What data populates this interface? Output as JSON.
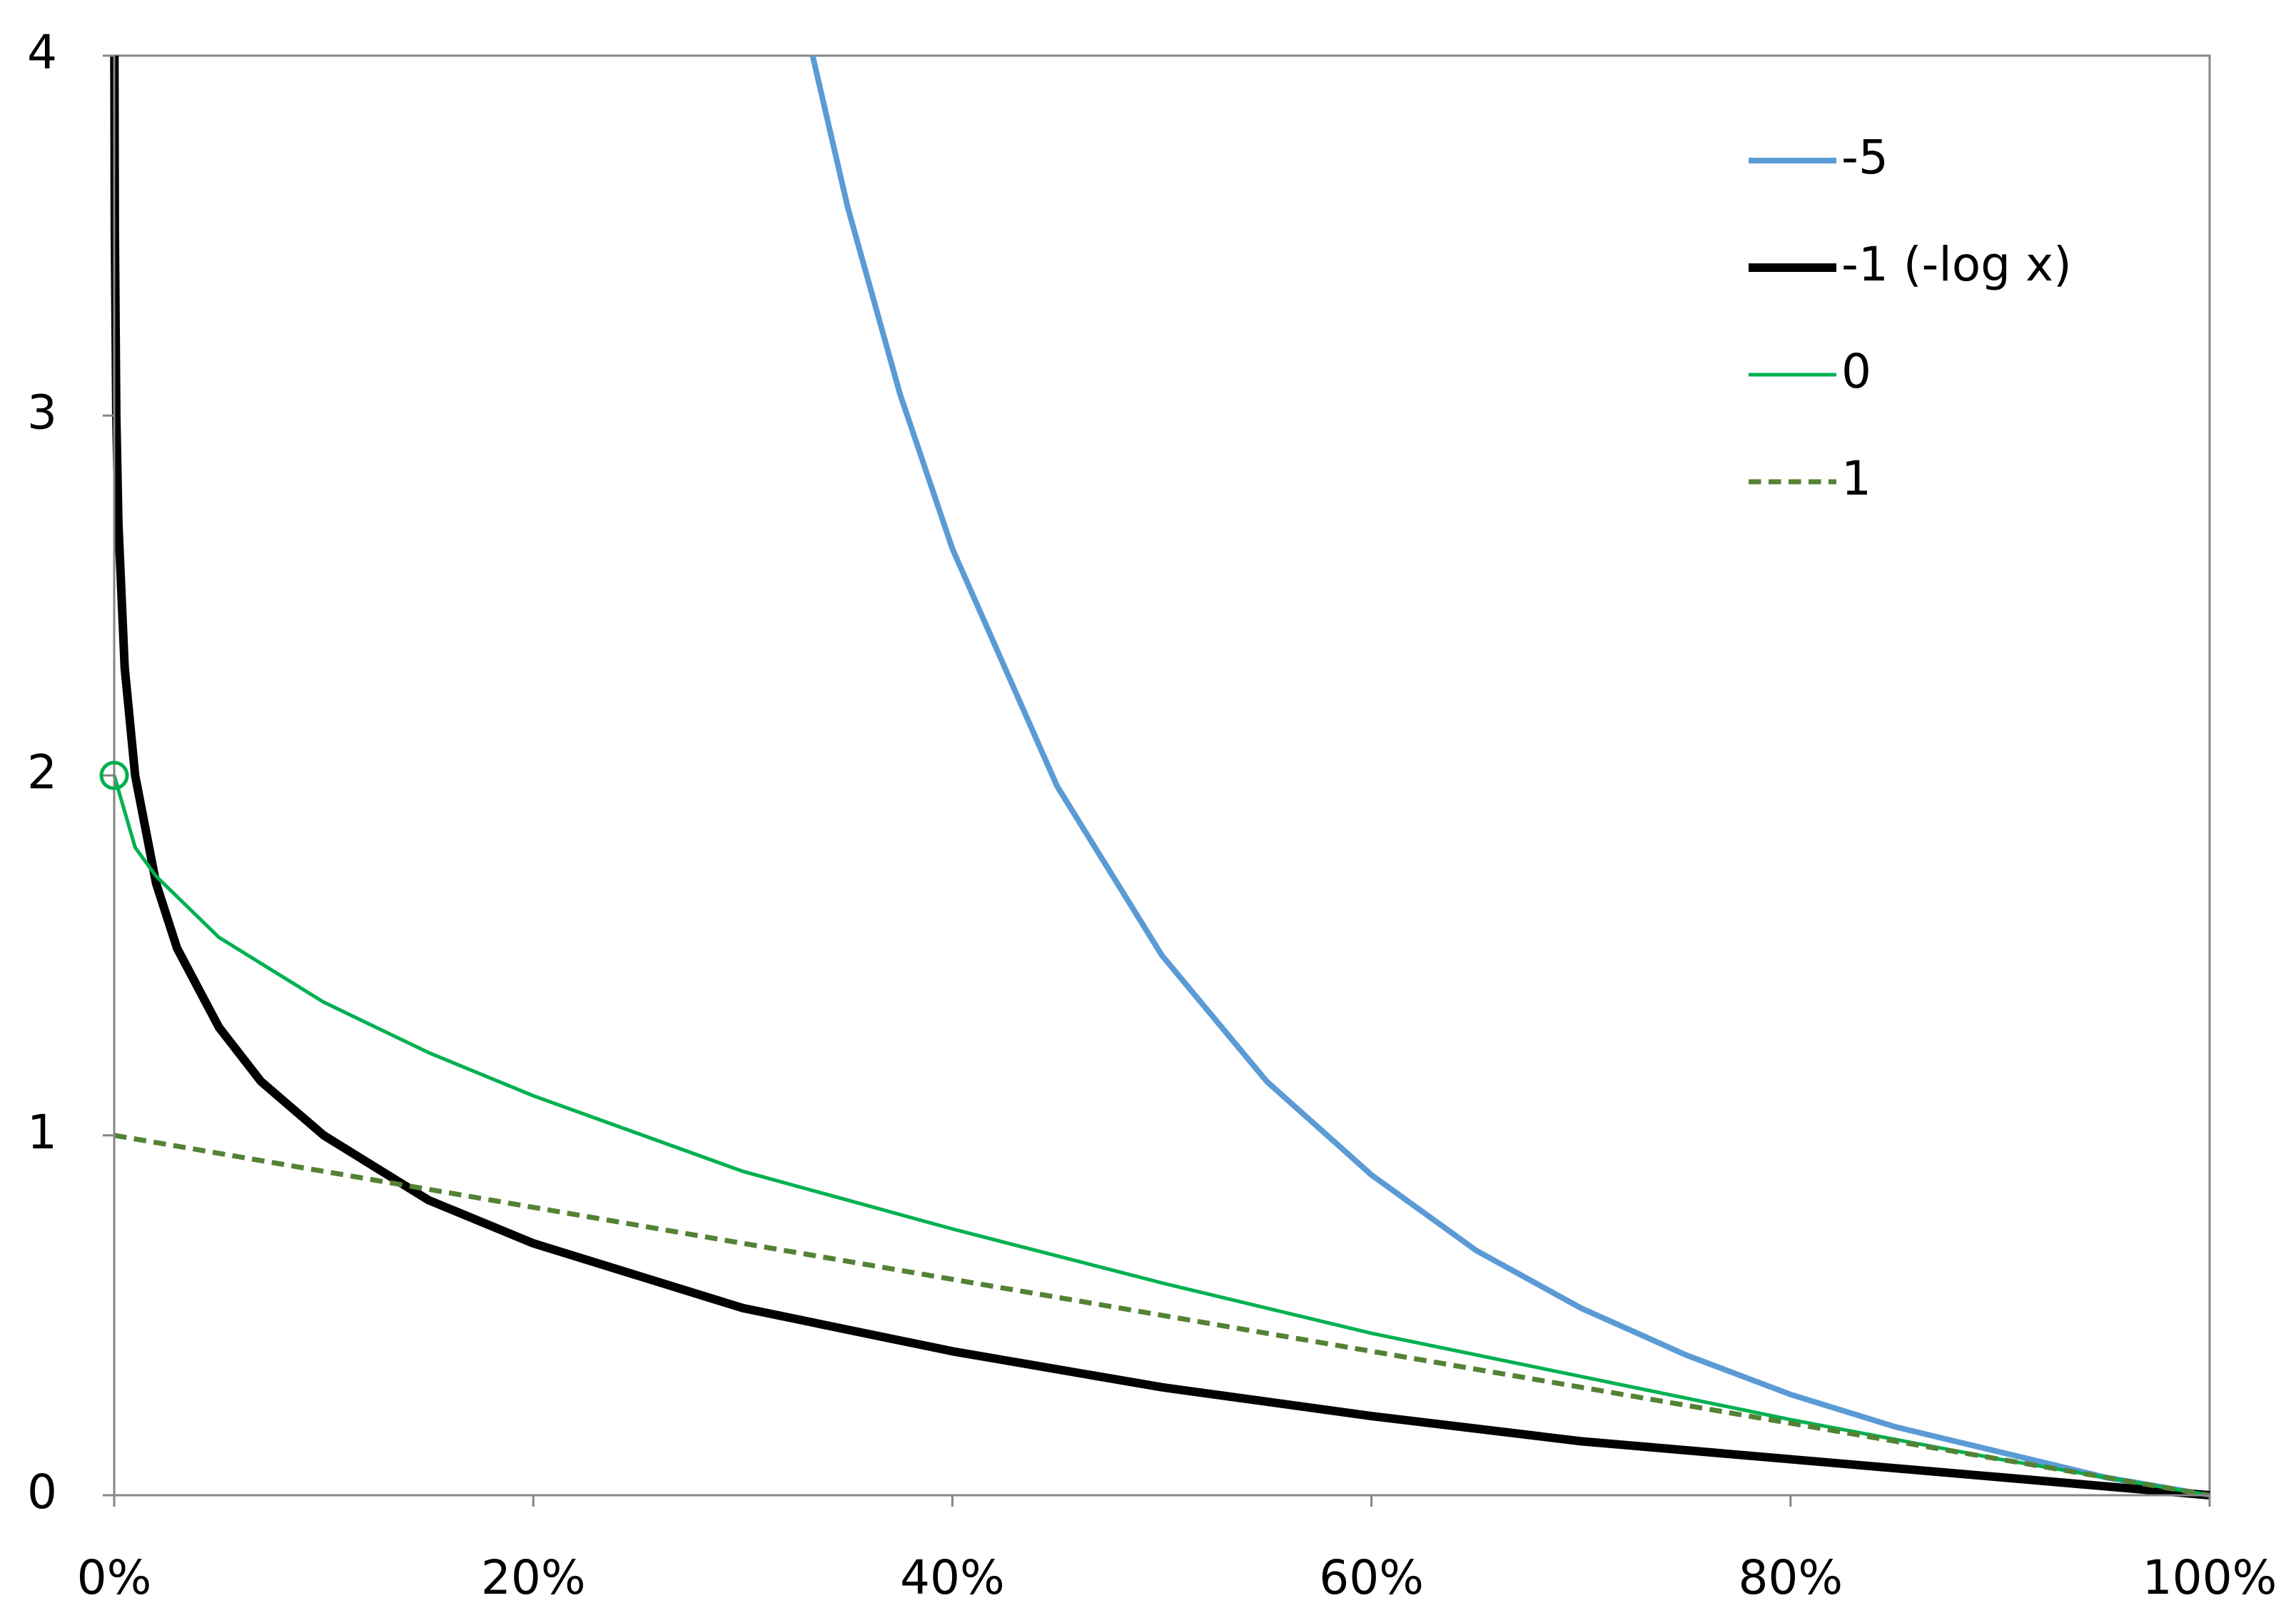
{
  "chart_data": {
    "type": "line",
    "xlim": [
      0,
      1
    ],
    "ylim": [
      0,
      4
    ],
    "xticks": [
      {
        "value": 0,
        "label": "0%"
      },
      {
        "value": 0.2,
        "label": "20%"
      },
      {
        "value": 0.4,
        "label": "40%"
      },
      {
        "value": 0.6,
        "label": "60%"
      },
      {
        "value": 0.8,
        "label": "80%"
      },
      {
        "value": 1,
        "label": "100%"
      }
    ],
    "yticks": [
      0,
      1,
      2,
      3,
      4
    ],
    "grid": false,
    "legend": "upper right",
    "series": [
      {
        "name": "-5",
        "color": "#5b9bd5",
        "dash": "solid",
        "x": [
          0.3333,
          0.35,
          0.375,
          0.4,
          0.45,
          0.5,
          0.55,
          0.6,
          0.65,
          0.7,
          0.75,
          0.8,
          0.85,
          0.9,
          0.95,
          1
        ],
        "values": [
          4.0,
          3.58,
          3.06,
          2.63,
          1.97,
          1.5,
          1.15,
          0.89,
          0.68,
          0.52,
          0.39,
          0.28,
          0.19,
          0.12,
          0.05,
          0
        ]
      },
      {
        "name": "-1 (-log x)",
        "color": "#000000",
        "dash": "solid",
        "x": [
          0.0001,
          0.0003,
          0.001,
          0.002,
          0.005,
          0.01,
          0.02,
          0.03,
          0.05,
          0.07,
          0.1,
          0.15,
          0.2,
          0.3,
          0.4,
          0.5,
          0.6,
          0.7,
          0.8,
          0.9,
          1
        ],
        "values": [
          4.0,
          3.52,
          3.0,
          2.7,
          2.3,
          2.0,
          1.7,
          1.52,
          1.3,
          1.15,
          1.0,
          0.82,
          0.7,
          0.52,
          0.4,
          0.3,
          0.22,
          0.15,
          0.1,
          0.05,
          0
        ]
      },
      {
        "name": "0",
        "color": "#00b050",
        "dash": "solid",
        "start_marker": "circle",
        "x": [
          0,
          0.01,
          0.02,
          0.05,
          0.1,
          0.15,
          0.2,
          0.3,
          0.4,
          0.5,
          0.6,
          0.7,
          0.8,
          0.9,
          1
        ],
        "values": [
          2.0,
          1.8,
          1.72,
          1.55,
          1.37,
          1.23,
          1.11,
          0.9,
          0.74,
          0.59,
          0.45,
          0.33,
          0.21,
          0.1,
          0
        ]
      },
      {
        "name": "1",
        "color": "#548235",
        "dash": "dashed",
        "x": [
          0,
          0.5,
          1
        ],
        "values": [
          1.0,
          0.5,
          0
        ]
      }
    ]
  }
}
